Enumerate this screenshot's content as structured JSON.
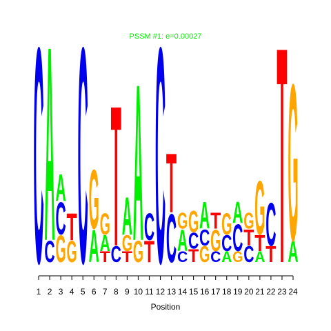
{
  "chart_data": {
    "type": "logo",
    "title": "PSSM #1: e=0.00027",
    "x_label": "Position",
    "colors": {
      "A": "#00ee00",
      "C": "#0000ee",
      "G": "#ffa500",
      "T": "#ff0000"
    },
    "categories": [
      "1",
      "2",
      "3",
      "4",
      "5",
      "6",
      "7",
      "8",
      "9",
      "10",
      "11",
      "12",
      "13",
      "14",
      "15",
      "16",
      "17",
      "18",
      "19",
      "20",
      "21",
      "22",
      "23",
      "24"
    ],
    "ylim": [
      0,
      2
    ],
    "stacks": [
      [
        {
          "letter": "C",
          "bits": 2.0
        }
      ],
      [
        {
          "letter": "C",
          "bits": 0.2
        },
        {
          "letter": "A",
          "bits": 1.8
        }
      ],
      [
        {
          "letter": "G",
          "bits": 0.25
        },
        {
          "letter": "C",
          "bits": 0.3
        },
        {
          "letter": "A",
          "bits": 0.25
        }
      ],
      [
        {
          "letter": "G",
          "bits": 0.2
        },
        {
          "letter": "T",
          "bits": 0.25
        }
      ],
      [
        {
          "letter": "C",
          "bits": 2.0
        }
      ],
      [
        {
          "letter": "A",
          "bits": 0.3
        },
        {
          "letter": "G",
          "bits": 0.55
        }
      ],
      [
        {
          "letter": "T",
          "bits": 0.1
        },
        {
          "letter": "A",
          "bits": 0.15
        },
        {
          "letter": "G",
          "bits": 0.2
        }
      ],
      [
        {
          "letter": "C",
          "bits": 0.15
        },
        {
          "letter": "T",
          "bits": 1.3
        }
      ],
      [
        {
          "letter": "T",
          "bits": 0.1
        },
        {
          "letter": "G",
          "bits": 0.15
        },
        {
          "letter": "A",
          "bits": 0.35
        }
      ],
      [
        {
          "letter": "G",
          "bits": 0.2
        },
        {
          "letter": "A",
          "bits": 1.45
        }
      ],
      [
        {
          "letter": "T",
          "bits": 0.2
        },
        {
          "letter": "C",
          "bits": 0.25
        }
      ],
      [
        {
          "letter": "C",
          "bits": 2.0
        }
      ],
      [
        {
          "letter": "C",
          "bits": 0.45
        },
        {
          "letter": "T",
          "bits": 0.55
        }
      ],
      [
        {
          "letter": "C",
          "bits": 0.1
        },
        {
          "letter": "A",
          "bits": 0.2
        },
        {
          "letter": "G",
          "bits": 0.15
        }
      ],
      [
        {
          "letter": "T",
          "bits": 0.12
        },
        {
          "letter": "C",
          "bits": 0.15
        },
        {
          "letter": "G",
          "bits": 0.2
        }
      ],
      [
        {
          "letter": "G",
          "bits": 0.15
        },
        {
          "letter": "C",
          "bits": 0.15
        },
        {
          "letter": "A",
          "bits": 0.25
        }
      ],
      [
        {
          "letter": "C",
          "bits": 0.1
        },
        {
          "letter": "G",
          "bits": 0.2
        },
        {
          "letter": "T",
          "bits": 0.15
        }
      ],
      [
        {
          "letter": "A",
          "bits": 0.1
        },
        {
          "letter": "C",
          "bits": 0.15
        },
        {
          "letter": "G",
          "bits": 0.2
        }
      ],
      [
        {
          "letter": "G",
          "bits": 0.1
        },
        {
          "letter": "C",
          "bits": 0.25
        },
        {
          "letter": "A",
          "bits": 0.2
        }
      ],
      [
        {
          "letter": "C",
          "bits": 0.15
        },
        {
          "letter": "T",
          "bits": 0.15
        },
        {
          "letter": "G",
          "bits": 0.15
        }
      ],
      [
        {
          "letter": "A",
          "bits": 0.1
        },
        {
          "letter": "T",
          "bits": 0.15
        },
        {
          "letter": "G",
          "bits": 0.5
        }
      ],
      [
        {
          "letter": "T",
          "bits": 0.15
        },
        {
          "letter": "C",
          "bits": 0.4
        }
      ],
      [
        {
          "letter": "T",
          "bits": 2.0
        }
      ],
      [
        {
          "letter": "A",
          "bits": 0.2
        },
        {
          "letter": "G",
          "bits": 1.45
        }
      ]
    ]
  }
}
